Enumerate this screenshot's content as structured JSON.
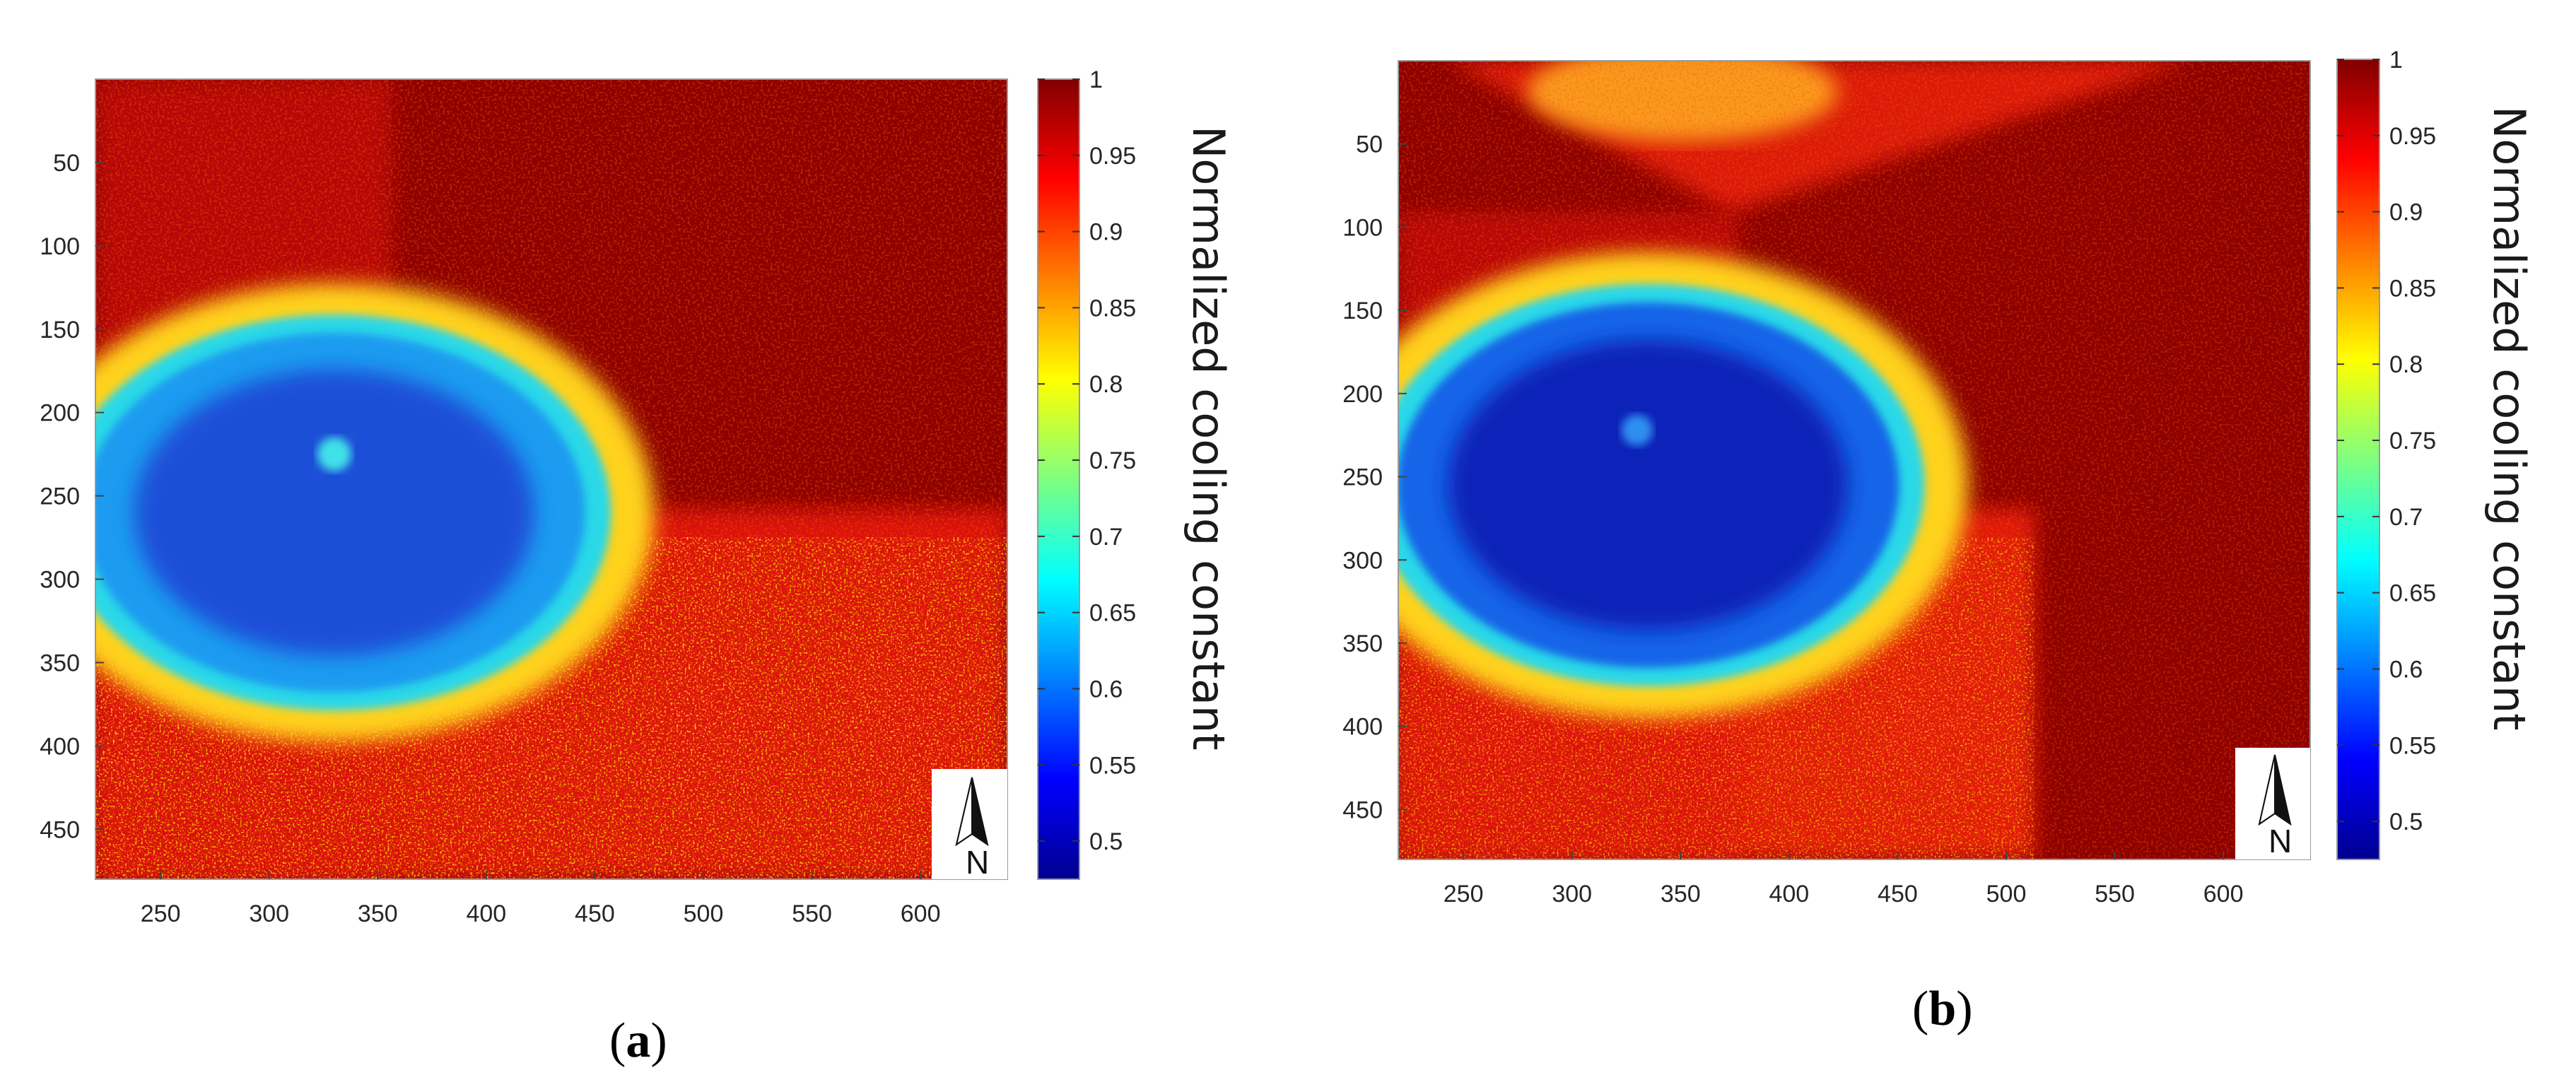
{
  "figure": {
    "north_letter": "N",
    "colormap": [
      "#00008f",
      "#0000ff",
      "#00ffff",
      "#ffff00",
      "#ff0000",
      "#800000"
    ],
    "colors": {
      "background_high": "#8b0000",
      "pool_low": "#1f4fd8",
      "pool_mid": "#1e9bf0",
      "halo": "#ffd21e"
    }
  },
  "chart_data": [
    {
      "type": "heatmap",
      "panel_open": "(",
      "panel_letter": "a",
      "panel_close": ")",
      "xlim": [
        220,
        640
      ],
      "ylim": [
        0,
        480
      ],
      "y_reversed": true,
      "x_ticks": [
        250,
        300,
        350,
        400,
        450,
        500,
        550,
        600
      ],
      "y_ticks": [
        50,
        100,
        150,
        200,
        250,
        300,
        350,
        400,
        450
      ],
      "colorbar": {
        "label": "Normalized cooling constant",
        "clim": [
          0.475,
          1
        ],
        "ticks": [
          "1",
          "0.95",
          "0.9",
          "0.85",
          "0.8",
          "0.75",
          "0.7",
          "0.65",
          "0.6",
          "0.55",
          "0.5"
        ]
      },
      "field": {
        "background_value": 0.98,
        "pool": {
          "center_x": 330,
          "center_y": 260,
          "half_width_x": 118,
          "half_height_y": 110,
          "min_value": 0.56,
          "edge_value": 0.72
        },
        "hot_spot": {
          "x": 330,
          "y": 225,
          "value": 0.66
        },
        "lower_region": {
          "from_y": 330,
          "value": 0.9
        }
      }
    },
    {
      "type": "heatmap",
      "panel_open": "(",
      "panel_letter": "b",
      "panel_close": ")",
      "xlim": [
        220,
        640
      ],
      "ylim": [
        0,
        480
      ],
      "y_reversed": true,
      "x_ticks": [
        250,
        300,
        350,
        400,
        450,
        500,
        550,
        600
      ],
      "y_ticks": [
        50,
        100,
        150,
        200,
        250,
        300,
        350,
        400,
        450
      ],
      "colorbar": {
        "label": "Normalized cooling constant",
        "clim": [
          0.475,
          1
        ],
        "ticks": [
          "1",
          "0.95",
          "0.9",
          "0.85",
          "0.8",
          "0.75",
          "0.7",
          "0.65",
          "0.6",
          "0.55",
          "0.5"
        ]
      },
      "field": {
        "background_value": 0.98,
        "pool": {
          "center_x": 335,
          "center_y": 255,
          "half_width_x": 118,
          "half_height_y": 112,
          "min_value": 0.5,
          "edge_value": 0.7
        },
        "hot_spot": {
          "x": 330,
          "y": 222,
          "value": 0.62
        },
        "lower_region": {
          "from_y": 330,
          "value": 0.9
        }
      }
    }
  ]
}
